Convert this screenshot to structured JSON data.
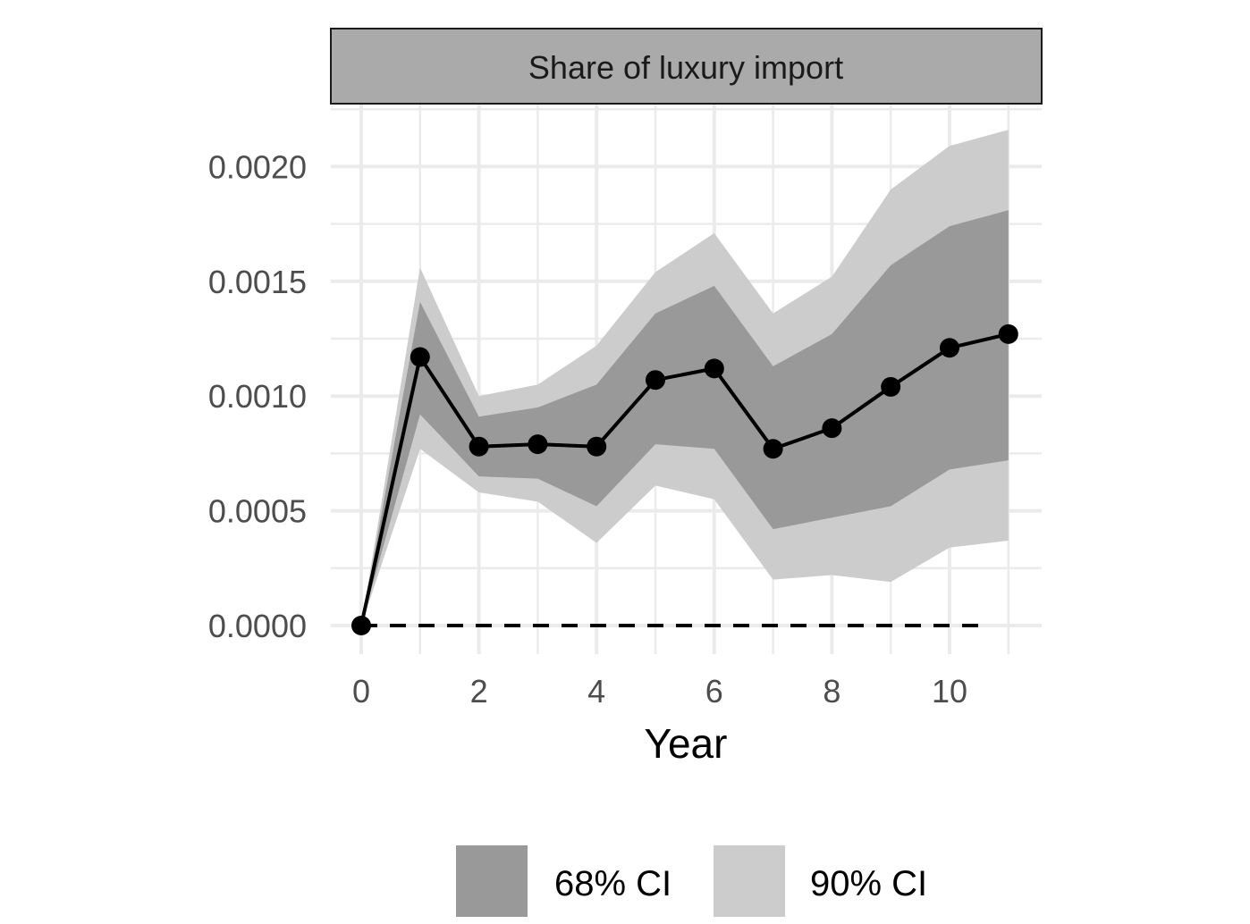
{
  "chart_data": {
    "type": "line",
    "panel_title": "Share of luxury import",
    "xlabel": "Year",
    "ylabel": "",
    "xlim": [
      0,
      11
    ],
    "ylim": [
      0,
      0.0022
    ],
    "x_ticks": [
      0,
      2,
      4,
      6,
      8,
      10
    ],
    "x_tick_labels": [
      "0",
      "2",
      "4",
      "6",
      "8",
      "10"
    ],
    "y_ticks": [
      0,
      0.0005,
      0.001,
      0.0015,
      0.002
    ],
    "y_tick_labels": [
      "0.0000",
      "0.0005",
      "0.0010",
      "0.0015",
      "0.0020"
    ],
    "grid": true,
    "reference_line": {
      "y": 0,
      "style": "dashed"
    },
    "x": [
      0,
      1,
      2,
      3,
      4,
      5,
      6,
      7,
      8,
      9,
      10,
      11
    ],
    "estimate": [
      0,
      0.00117,
      0.00078,
      0.00079,
      0.00078,
      0.00107,
      0.00112,
      0.00077,
      0.00086,
      0.00104,
      0.00121,
      0.00127
    ],
    "bands": [
      {
        "name": "90% CI",
        "color": "#cccccc",
        "lower": [
          0,
          0.00077,
          0.00058,
          0.00054,
          0.00036,
          0.00061,
          0.00055,
          0.0002,
          0.00022,
          0.00019,
          0.00034,
          0.00037
        ],
        "upper": [
          0,
          0.00156,
          0.001,
          0.00105,
          0.00122,
          0.00154,
          0.00171,
          0.00136,
          0.00152,
          0.0019,
          0.00209,
          0.00216
        ]
      },
      {
        "name": "68% CI",
        "color": "#999999",
        "lower": [
          0,
          0.00092,
          0.00065,
          0.00064,
          0.00052,
          0.00079,
          0.00077,
          0.00042,
          0.00047,
          0.00052,
          0.00068,
          0.00072
        ],
        "upper": [
          0,
          0.00141,
          0.00091,
          0.00095,
          0.00105,
          0.00136,
          0.00148,
          0.00113,
          0.00127,
          0.00157,
          0.00174,
          0.00181
        ]
      }
    ],
    "legend": {
      "position": "bottom",
      "items": [
        {
          "label": "68% CI",
          "color": "#999999"
        },
        {
          "label": "90% CI",
          "color": "#cccccc"
        }
      ]
    },
    "colors": {
      "grid": "#ebebeb",
      "strip_fill": "#aaaaaa",
      "line": "#000000"
    }
  }
}
